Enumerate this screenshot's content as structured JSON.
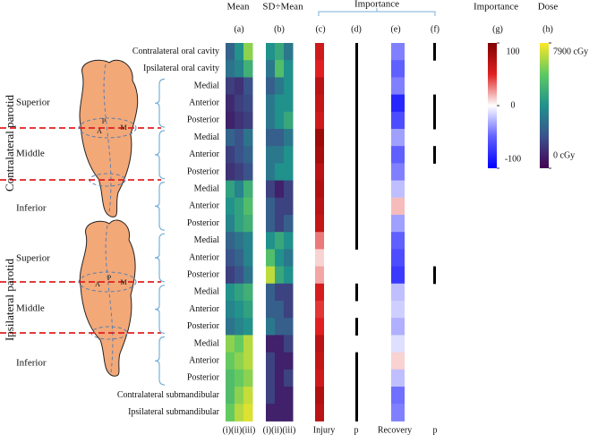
{
  "header": {
    "mean": "Mean",
    "sd_mean": "SD÷Mean",
    "importance": "Importance",
    "importance_bar": "Importance",
    "dose": "Dose",
    "letters": [
      "(a)",
      "(b)",
      "(c)",
      "(d)",
      "(e)",
      "(f)",
      "(g)",
      "(h)"
    ]
  },
  "footer": {
    "mean": "(i)(ii)(iii)",
    "sd_mean": "(i)(ii)(iii)",
    "injury": "Injury",
    "p_injury": "p",
    "recovery": "Recovery",
    "p_recovery": "p"
  },
  "parotids": [
    {
      "name": "Contralateral parotid",
      "regions": [
        "Superior",
        "Middle",
        "Inferior"
      ],
      "points": [
        "P",
        "A",
        "M"
      ]
    },
    {
      "name": "Ipsilateral parotid",
      "regions": [
        "Superior",
        "Middle",
        "Inferior"
      ],
      "points": [
        "P",
        "A",
        "M"
      ]
    }
  ],
  "rows": [
    {
      "label": "Contralateral oral cavity",
      "mean": [
        2500,
        4000,
        6500
      ],
      "sd_mean": [
        0.5,
        0.6,
        0.4
      ],
      "injury": 60,
      "p_injury": true,
      "recovery": -40,
      "p_recovery": true
    },
    {
      "label": "Ipsilateral oral cavity",
      "mean": [
        3000,
        3500,
        5000
      ],
      "sd_mean": [
        0.4,
        0.7,
        0.5
      ],
      "injury": 50,
      "p_injury": true,
      "recovery": -50,
      "p_recovery": false
    },
    {
      "label": "Medial",
      "mean": [
        1500,
        1200,
        2000
      ],
      "sd_mean": [
        0.3,
        0.4,
        0.5
      ],
      "injury": 70,
      "p_injury": true,
      "recovery": -40,
      "p_recovery": false
    },
    {
      "label": "Anterior",
      "mean": [
        1000,
        1500,
        1800
      ],
      "sd_mean": [
        0.4,
        0.5,
        0.5
      ],
      "injury": 65,
      "p_injury": true,
      "recovery": -80,
      "p_recovery": true
    },
    {
      "label": "Posterior",
      "mean": [
        800,
        1200,
        1500
      ],
      "sd_mean": [
        0.4,
        0.5,
        0.6
      ],
      "injury": 60,
      "p_injury": true,
      "recovery": -60,
      "p_recovery": true
    },
    {
      "label": "Medial",
      "mean": [
        2500,
        2000,
        3000
      ],
      "sd_mean": [
        0.3,
        0.3,
        0.4
      ],
      "injury": 85,
      "p_injury": true,
      "recovery": -30,
      "p_recovery": false
    },
    {
      "label": "Anterior",
      "mean": [
        1500,
        2000,
        2500
      ],
      "sd_mean": [
        0.4,
        0.4,
        0.5
      ],
      "injury": 80,
      "p_injury": true,
      "recovery": -50,
      "p_recovery": true
    },
    {
      "label": "Posterior",
      "mean": [
        1200,
        1500,
        2000
      ],
      "sd_mean": [
        0.4,
        0.5,
        0.5
      ],
      "injury": 70,
      "p_injury": true,
      "recovery": -40,
      "p_recovery": false
    },
    {
      "label": "Medial",
      "mean": [
        4500,
        3500,
        5000
      ],
      "sd_mean": [
        0.2,
        0.1,
        0.2
      ],
      "injury": 75,
      "p_injury": true,
      "recovery": -20,
      "p_recovery": false
    },
    {
      "label": "Anterior",
      "mean": [
        4000,
        4500,
        5500
      ],
      "sd_mean": [
        0.3,
        0.2,
        0.2
      ],
      "injury": 70,
      "p_injury": true,
      "recovery": 15,
      "p_recovery": false
    },
    {
      "label": "Posterior",
      "mean": [
        3500,
        4500,
        5000
      ],
      "sd_mean": [
        0.3,
        0.2,
        0.3
      ],
      "injury": 65,
      "p_injury": true,
      "recovery": -30,
      "p_recovery": false
    },
    {
      "label": "Medial",
      "mean": [
        2500,
        3000,
        3500
      ],
      "sd_mean": [
        0.5,
        0.6,
        0.5
      ],
      "injury": 30,
      "p_injury": true,
      "recovery": -50,
      "p_recovery": false
    },
    {
      "label": "Anterior",
      "mean": [
        2000,
        2500,
        3500
      ],
      "sd_mean": [
        0.7,
        0.5,
        0.4
      ],
      "injury": 10,
      "p_injury": false,
      "recovery": -60,
      "p_recovery": false
    },
    {
      "label": "Posterior",
      "mean": [
        1500,
        2000,
        3000
      ],
      "sd_mean": [
        0.9,
        0.6,
        0.5
      ],
      "injury": 20,
      "p_injury": false,
      "recovery": -70,
      "p_recovery": true
    },
    {
      "label": "Medial",
      "mean": [
        4000,
        4500,
        5000
      ],
      "sd_mean": [
        0.3,
        0.2,
        0.2
      ],
      "injury": 55,
      "p_injury": true,
      "recovery": -20,
      "p_recovery": false
    },
    {
      "label": "Anterior",
      "mean": [
        3500,
        4000,
        4500
      ],
      "sd_mean": [
        0.3,
        0.3,
        0.2
      ],
      "injury": 45,
      "p_injury": false,
      "recovery": -15,
      "p_recovery": false
    },
    {
      "label": "Posterior",
      "mean": [
        3000,
        3500,
        4000
      ],
      "sd_mean": [
        0.4,
        0.3,
        0.3
      ],
      "injury": 50,
      "p_injury": true,
      "recovery": -25,
      "p_recovery": false
    },
    {
      "label": "Medial",
      "mean": [
        6500,
        6000,
        7000
      ],
      "sd_mean": [
        0.1,
        0.1,
        0.2
      ],
      "injury": 70,
      "p_injury": false,
      "recovery": -10,
      "p_recovery": false
    },
    {
      "label": "Anterior",
      "mean": [
        6000,
        6500,
        7000
      ],
      "sd_mean": [
        0.2,
        0.1,
        0.1
      ],
      "injury": 65,
      "p_injury": true,
      "recovery": 10,
      "p_recovery": false
    },
    {
      "label": "Posterior",
      "mean": [
        5500,
        6000,
        6500
      ],
      "sd_mean": [
        0.2,
        0.1,
        0.2
      ],
      "injury": 60,
      "p_injury": true,
      "recovery": -20,
      "p_recovery": false
    },
    {
      "label": "Contralateral submandibular",
      "mean": [
        5500,
        6500,
        7200
      ],
      "sd_mean": [
        0.2,
        0.1,
        0.1
      ],
      "injury": 75,
      "p_injury": true,
      "recovery": -45,
      "p_recovery": false
    },
    {
      "label": "Ipsilateral submandibular",
      "mean": [
        6000,
        7000,
        7500
      ],
      "sd_mean": [
        0.1,
        0.1,
        0.1
      ],
      "injury": 70,
      "p_injury": true,
      "recovery": -40,
      "p_recovery": false
    }
  ],
  "colorbars": {
    "importance": {
      "range": [
        -100,
        100
      ],
      "ticks": [
        100,
        0,
        -100
      ]
    },
    "dose": {
      "range": [
        0,
        7900
      ],
      "ticks": [
        {
          "value": 7900,
          "label": "7900 cGy"
        },
        {
          "value": 0,
          "label": "0 cGy"
        }
      ]
    }
  }
}
